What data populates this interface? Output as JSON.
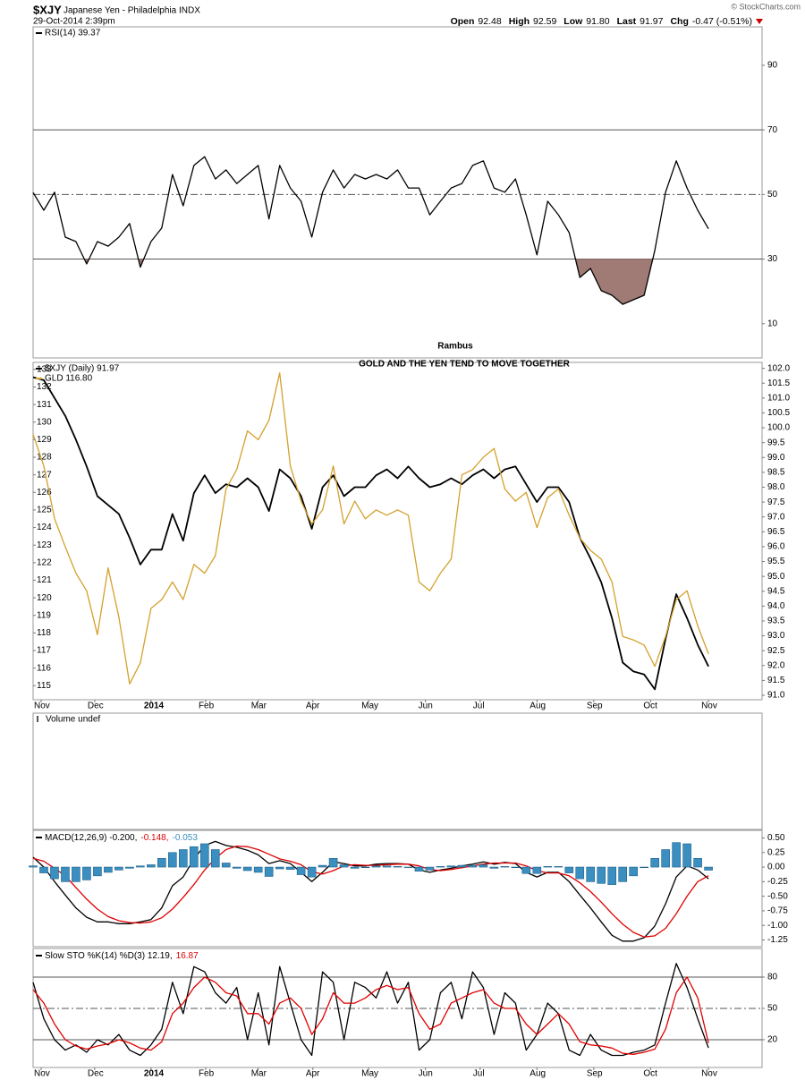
{
  "header": {
    "symbol": "$XJY",
    "name": "Japanese Yen - Philadelphia INDX",
    "date": "29-Oct-2014 2:39pm",
    "quote": [
      {
        "label": "Open",
        "value": "92.48"
      },
      {
        "label": "High",
        "value": "92.59"
      },
      {
        "label": "Low",
        "value": "91.80"
      },
      {
        "label": "Last",
        "value": "91.97"
      },
      {
        "label": "Chg",
        "value": "-0.47 (-0.51%)"
      }
    ],
    "credit": "© StockCharts.com"
  },
  "chart_data": [
    {
      "type": "line",
      "annotation": "Rambus",
      "xlim": [
        0,
        68
      ],
      "ylim": [
        -0.6,
        101.9
      ],
      "yticks": [
        10,
        30,
        50,
        70,
        90
      ],
      "levels": [
        {
          "value": 70,
          "style": "solid"
        },
        {
          "value": 50,
          "style": "dashdot"
        },
        {
          "value": 30,
          "style": "solid"
        }
      ],
      "series": [
        {
          "name": "RSI(14) 39.37",
          "color": "#000000",
          "fill_below": {
            "level": 30,
            "color": "#a07a74"
          },
          "values": [
            50.6,
            45.1,
            50.7,
            36.8,
            35.4,
            28.5,
            35.4,
            34.0,
            36.8,
            41.0,
            27.5,
            35.4,
            39.6,
            56.2,
            46.5,
            59.0,
            61.7,
            54.8,
            57.6,
            53.4,
            56.2,
            59.0,
            42.4,
            59.0,
            52.0,
            47.9,
            36.8,
            50.7,
            57.6,
            52.0,
            56.2,
            54.8,
            56.2,
            54.8,
            57.6,
            52.0,
            52.0,
            43.7,
            47.9,
            52.0,
            53.4,
            59.0,
            60.4,
            52.0,
            50.7,
            54.8,
            43.7,
            31.3,
            47.9,
            43.7,
            38.2,
            24.3,
            27.1,
            20.2,
            18.8,
            16.0,
            17.4,
            18.8,
            32.7,
            50.7,
            60.4,
            52.0,
            45.1,
            39.37
          ]
        }
      ]
    },
    {
      "type": "line",
      "title": "GOLD AND THE YEN TEND TO MOVE TOGETHER",
      "xlim": [
        0,
        68
      ],
      "xticks": [
        {
          "value": 0.75,
          "label": "Nov"
        },
        {
          "value": 5.75,
          "label": "Dec"
        },
        {
          "value": 11,
          "label": "2014"
        },
        {
          "value": 16.1,
          "label": "Feb"
        },
        {
          "value": 21,
          "label": "Mar"
        },
        {
          "value": 26.1,
          "label": "Apr"
        },
        {
          "value": 31.3,
          "label": "May"
        },
        {
          "value": 36.6,
          "label": "Jun"
        },
        {
          "value": 41.7,
          "label": "Jul"
        },
        {
          "value": 47,
          "label": "Aug"
        },
        {
          "value": 52.3,
          "label": "Sep"
        },
        {
          "value": 57.6,
          "label": "Oct"
        },
        {
          "value": 63,
          "label": "Nov"
        }
      ],
      "ylim": [
        114.2,
        133.4
      ],
      "yticks": [
        115,
        116,
        117,
        118,
        119,
        120,
        121,
        122,
        123,
        124,
        125,
        126,
        127,
        128,
        129,
        130,
        131,
        132,
        133
      ],
      "y2lim": [
        90.85,
        102.2
      ],
      "y2ticks": [
        {
          "value": 91,
          "label": "91.0"
        },
        91.5,
        {
          "value": 92,
          "label": "92.0"
        },
        92.5,
        {
          "value": 93,
          "label": "93.0"
        },
        93.5,
        {
          "value": 94,
          "label": "94.0"
        },
        94.5,
        {
          "value": 95,
          "label": "95.0"
        },
        95.5,
        {
          "value": 96,
          "label": "96.0"
        },
        96.5,
        {
          "value": 97,
          "label": "97.0"
        },
        97.5,
        {
          "value": 98,
          "label": "98.0"
        },
        98.5,
        {
          "value": 99,
          "label": "99.0"
        },
        99.5,
        {
          "value": 100,
          "label": "100.0"
        },
        100.5,
        {
          "value": 101,
          "label": "101.0"
        },
        101.5,
        {
          "value": 102,
          "label": "102.0"
        }
      ],
      "series": [
        {
          "name": "$XJY (Daily) 91.97",
          "color": "#000000",
          "axis": "y2",
          "values": [
            101.7,
            101.6,
            101.0,
            100.4,
            99.6,
            98.7,
            97.7,
            97.4,
            97.1,
            96.3,
            95.4,
            95.9,
            95.9,
            97.1,
            96.2,
            97.8,
            98.4,
            97.8,
            98.1,
            98.0,
            98.3,
            98.0,
            97.2,
            98.6,
            98.3,
            97.7,
            96.6,
            98.0,
            98.4,
            97.7,
            98.0,
            98.0,
            98.4,
            98.6,
            98.3,
            98.7,
            98.3,
            98.0,
            98.1,
            98.3,
            98.1,
            98.4,
            98.6,
            98.3,
            98.6,
            98.7,
            98.1,
            97.5,
            98.0,
            98.0,
            97.5,
            96.3,
            95.6,
            94.8,
            93.6,
            92.1,
            91.8,
            91.7,
            91.2,
            92.9,
            94.4,
            93.6,
            92.7,
            91.97
          ]
        },
        {
          "name": "GLD 116.80",
          "color": "#d4a02c",
          "values": [
            129.3,
            127.5,
            124.5,
            122.9,
            121.4,
            120.4,
            117.9,
            121.7,
            118.9,
            115.1,
            116.3,
            119.4,
            119.9,
            120.9,
            119.9,
            121.9,
            121.4,
            122.4,
            126.2,
            127.3,
            129.5,
            129.0,
            130.1,
            132.8,
            127.5,
            125.5,
            124.2,
            125.0,
            127.5,
            124.2,
            125.5,
            124.5,
            125.0,
            124.7,
            125.0,
            124.7,
            120.9,
            120.4,
            121.4,
            122.2,
            127.0,
            127.3,
            128.0,
            128.5,
            126.2,
            125.5,
            126.0,
            124.0,
            125.7,
            126.2,
            124.7,
            123.4,
            122.7,
            122.2,
            120.9,
            117.8,
            117.6,
            117.3,
            116.1,
            117.8,
            119.9,
            120.4,
            118.4,
            116.8
          ]
        }
      ]
    },
    {
      "type": "bar",
      "title": "Volume undef",
      "xlim": [
        0,
        68
      ]
    },
    {
      "type": "line",
      "xlim": [
        0,
        68
      ],
      "ylim": [
        -1.365,
        0.63
      ],
      "yticks": [
        {
          "value": 0.5,
          "label": "0.50"
        },
        0.25,
        {
          "value": 0,
          "label": "0.00"
        },
        -0.25,
        {
          "value": -0.5,
          "label": "-0.50"
        },
        -0.75,
        {
          "value": -1,
          "label": "-1.00"
        },
        -1.25
      ],
      "series": [
        {
          "name": "MACD(12,26,9) -0.200,",
          "color": "#000000",
          "values": [
            0.17,
            0,
            -0.25,
            -0.48,
            -0.7,
            -0.86,
            -0.94,
            -0.94,
            -0.97,
            -0.97,
            -0.94,
            -0.9,
            -0.7,
            -0.32,
            -0.17,
            0.14,
            0.37,
            0.44,
            0.37,
            0.34,
            0.29,
            0.21,
            0.06,
            0.11,
            0.06,
            -0.09,
            -0.25,
            -0.09,
            0.09,
            0.06,
            0.02,
            0.02,
            0.05,
            0.06,
            0.06,
            0.05,
            -0.05,
            -0.09,
            -0.05,
            -0.02,
            0.02,
            0.05,
            0.09,
            0.05,
            0.08,
            0.06,
            -0.09,
            -0.17,
            -0.09,
            -0.09,
            -0.25,
            -0.48,
            -0.7,
            -0.94,
            -1.17,
            -1.27,
            -1.27,
            -1.21,
            -1.01,
            -0.63,
            -0.17,
            0.02,
            -0.05,
            -0.2
          ]
        },
        {
          "name": "-0.148,",
          "color": "#e00000",
          "values": [
            0.15,
            0.1,
            -0.02,
            -0.15,
            -0.35,
            -0.55,
            -0.72,
            -0.85,
            -0.92,
            -0.95,
            -0.96,
            -0.94,
            -0.87,
            -0.72,
            -0.52,
            -0.3,
            -0.05,
            0.15,
            0.3,
            0.36,
            0.35,
            0.3,
            0.22,
            0.14,
            0.1,
            0.04,
            -0.08,
            -0.12,
            -0.06,
            0.02,
            0.04,
            0.03,
            0.03,
            0.04,
            0.05,
            0.05,
            0.02,
            -0.04,
            -0.06,
            -0.04,
            -0.01,
            0.02,
            0.05,
            0.07,
            0.07,
            0.07,
            0.02,
            -0.06,
            -0.1,
            -0.1,
            -0.15,
            -0.27,
            -0.42,
            -0.6,
            -0.8,
            -0.98,
            -1.12,
            -1.2,
            -1.18,
            -1.05,
            -0.8,
            -0.5,
            -0.25,
            -0.148
          ]
        },
        {
          "name": "-0.053",
          "color": "#3a8fc0",
          "type": "bar",
          "values": [
            0.02,
            -0.1,
            -0.2,
            -0.25,
            -0.25,
            -0.22,
            -0.15,
            -0.09,
            -0.05,
            -0.02,
            0.02,
            0.04,
            0.15,
            0.25,
            0.3,
            0.35,
            0.4,
            0.3,
            0.07,
            -0.02,
            -0.06,
            -0.09,
            -0.16,
            -0.03,
            -0.04,
            -0.13,
            -0.17,
            0.03,
            0.15,
            0.04,
            -0.02,
            -0.01,
            0.02,
            0.02,
            0.01,
            0,
            -0.07,
            -0.05,
            0.01,
            0.02,
            0.03,
            0.03,
            0.04,
            -0.02,
            0.01,
            -0.01,
            -0.11,
            -0.11,
            0.01,
            0.01,
            -0.1,
            -0.2,
            -0.25,
            -0.28,
            -0.3,
            -0.25,
            -0.15,
            -0.01,
            0.15,
            0.3,
            0.42,
            0.4,
            0.15,
            -0.053
          ]
        }
      ]
    },
    {
      "type": "line",
      "xlim": [
        0,
        68
      ],
      "xticks": [
        {
          "value": 0.75,
          "label": "Nov"
        },
        {
          "value": 5.75,
          "label": "Dec"
        },
        {
          "value": 11,
          "label": "2014"
        },
        {
          "value": 16.1,
          "label": "Feb"
        },
        {
          "value": 21,
          "label": "Mar"
        },
        {
          "value": 26.1,
          "label": "Apr"
        },
        {
          "value": 31.3,
          "label": "May"
        },
        {
          "value": 36.6,
          "label": "Jun"
        },
        {
          "value": 41.7,
          "label": "Jul"
        },
        {
          "value": 47,
          "label": "Aug"
        },
        {
          "value": 52.3,
          "label": "Sep"
        },
        {
          "value": 57.6,
          "label": "Oct"
        },
        {
          "value": 63,
          "label": "Nov"
        }
      ],
      "ylim": [
        -6.6,
        107.4
      ],
      "yticks": [
        20,
        50,
        80
      ],
      "levels": [
        {
          "value": 80,
          "style": "solid"
        },
        {
          "value": 50,
          "style": "dashdot"
        },
        {
          "value": 20,
          "style": "solid"
        }
      ],
      "series": [
        {
          "name": "Slow STO %K(14) %D(3) 12.19,",
          "color": "#000000",
          "values": [
            75,
            40,
            20,
            10,
            15,
            8,
            20,
            15,
            25,
            10,
            5,
            15,
            30,
            75,
            45,
            90,
            85,
            65,
            55,
            70,
            20,
            65,
            15,
            90,
            55,
            20,
            5,
            85,
            75,
            20,
            75,
            70,
            60,
            85,
            55,
            75,
            10,
            20,
            65,
            75,
            40,
            85,
            70,
            25,
            65,
            55,
            10,
            25,
            55,
            45,
            10,
            5,
            25,
            10,
            5,
            5,
            8,
            10,
            15,
            55,
            93,
            70,
            40,
            12.19
          ]
        },
        {
          "name": "16.87",
          "color": "#e00000",
          "values": [
            68,
            55,
            35,
            20,
            14,
            11,
            14,
            16,
            20,
            17,
            12,
            10,
            18,
            45,
            55,
            70,
            80,
            75,
            65,
            62,
            45,
            45,
            35,
            55,
            60,
            50,
            25,
            40,
            65,
            55,
            55,
            60,
            68,
            72,
            68,
            70,
            45,
            30,
            35,
            55,
            60,
            65,
            68,
            55,
            50,
            50,
            35,
            25,
            35,
            45,
            35,
            18,
            15,
            14,
            12,
            7,
            6,
            8,
            11,
            30,
            65,
            80,
            60,
            16.87
          ]
        }
      ]
    }
  ]
}
